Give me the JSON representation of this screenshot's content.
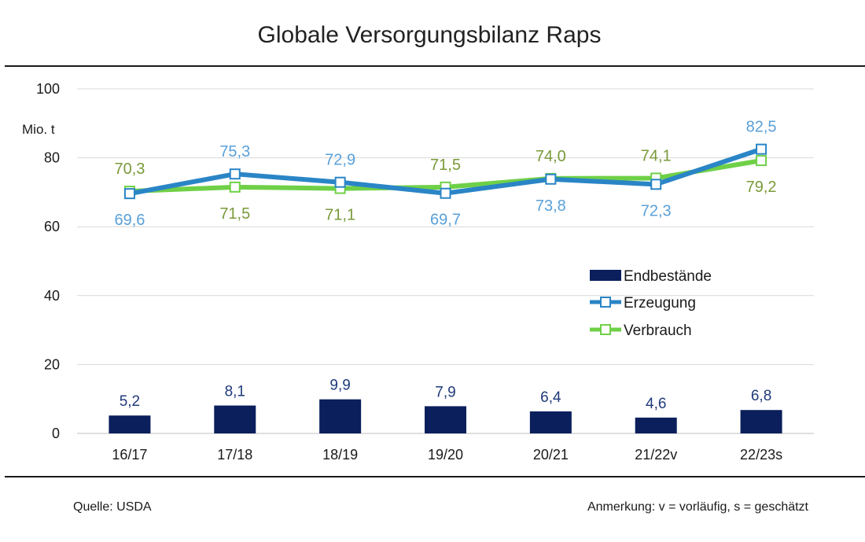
{
  "title": "Globale Versorgungsbilanz Raps",
  "footer": {
    "source": "Quelle: USDA",
    "note": "Anmerkung: v = vorläufig, s = geschätzt"
  },
  "colors": {
    "endbestaende": "#0a1f5c",
    "erzeugung": "#2a85c6",
    "erzeugung_label": "#5aa0d8",
    "verbrauch": "#6fd047",
    "verbrauch_label": "#7a9a3a",
    "grid": "#d9d9d9",
    "bar_label": "#1f3a7a"
  },
  "chart_data": {
    "type": "bar+line",
    "categories": [
      "16/17",
      "17/18",
      "18/19",
      "19/20",
      "20/21",
      "21/22v",
      "22/23s"
    ],
    "ylabel": "Mio. t",
    "ylim": [
      0,
      100
    ],
    "yticks": [
      0,
      20,
      40,
      60,
      80,
      100
    ],
    "grid": true,
    "legend_position": "right-middle",
    "series": [
      {
        "name": "Endbestände",
        "kind": "bar",
        "values": [
          5.2,
          8.1,
          9.9,
          7.9,
          6.4,
          4.6,
          6.8
        ],
        "labels": [
          "5,2",
          "8,1",
          "9,9",
          "7,9",
          "6,4",
          "4,6",
          "6,8"
        ]
      },
      {
        "name": "Erzeugung",
        "kind": "line",
        "values": [
          69.6,
          75.3,
          72.9,
          69.7,
          73.8,
          72.3,
          82.5
        ],
        "labels": [
          "69,6",
          "75,3",
          "72,9",
          "69,7",
          "73,8",
          "72,3",
          "82,5"
        ]
      },
      {
        "name": "Verbrauch",
        "kind": "line",
        "values": [
          70.3,
          71.5,
          71.1,
          71.5,
          74.0,
          74.1,
          79.2
        ],
        "labels": [
          "70,3",
          "71,5",
          "71,1",
          "71,5",
          "74,0",
          "74,1",
          "79,2"
        ]
      }
    ]
  }
}
